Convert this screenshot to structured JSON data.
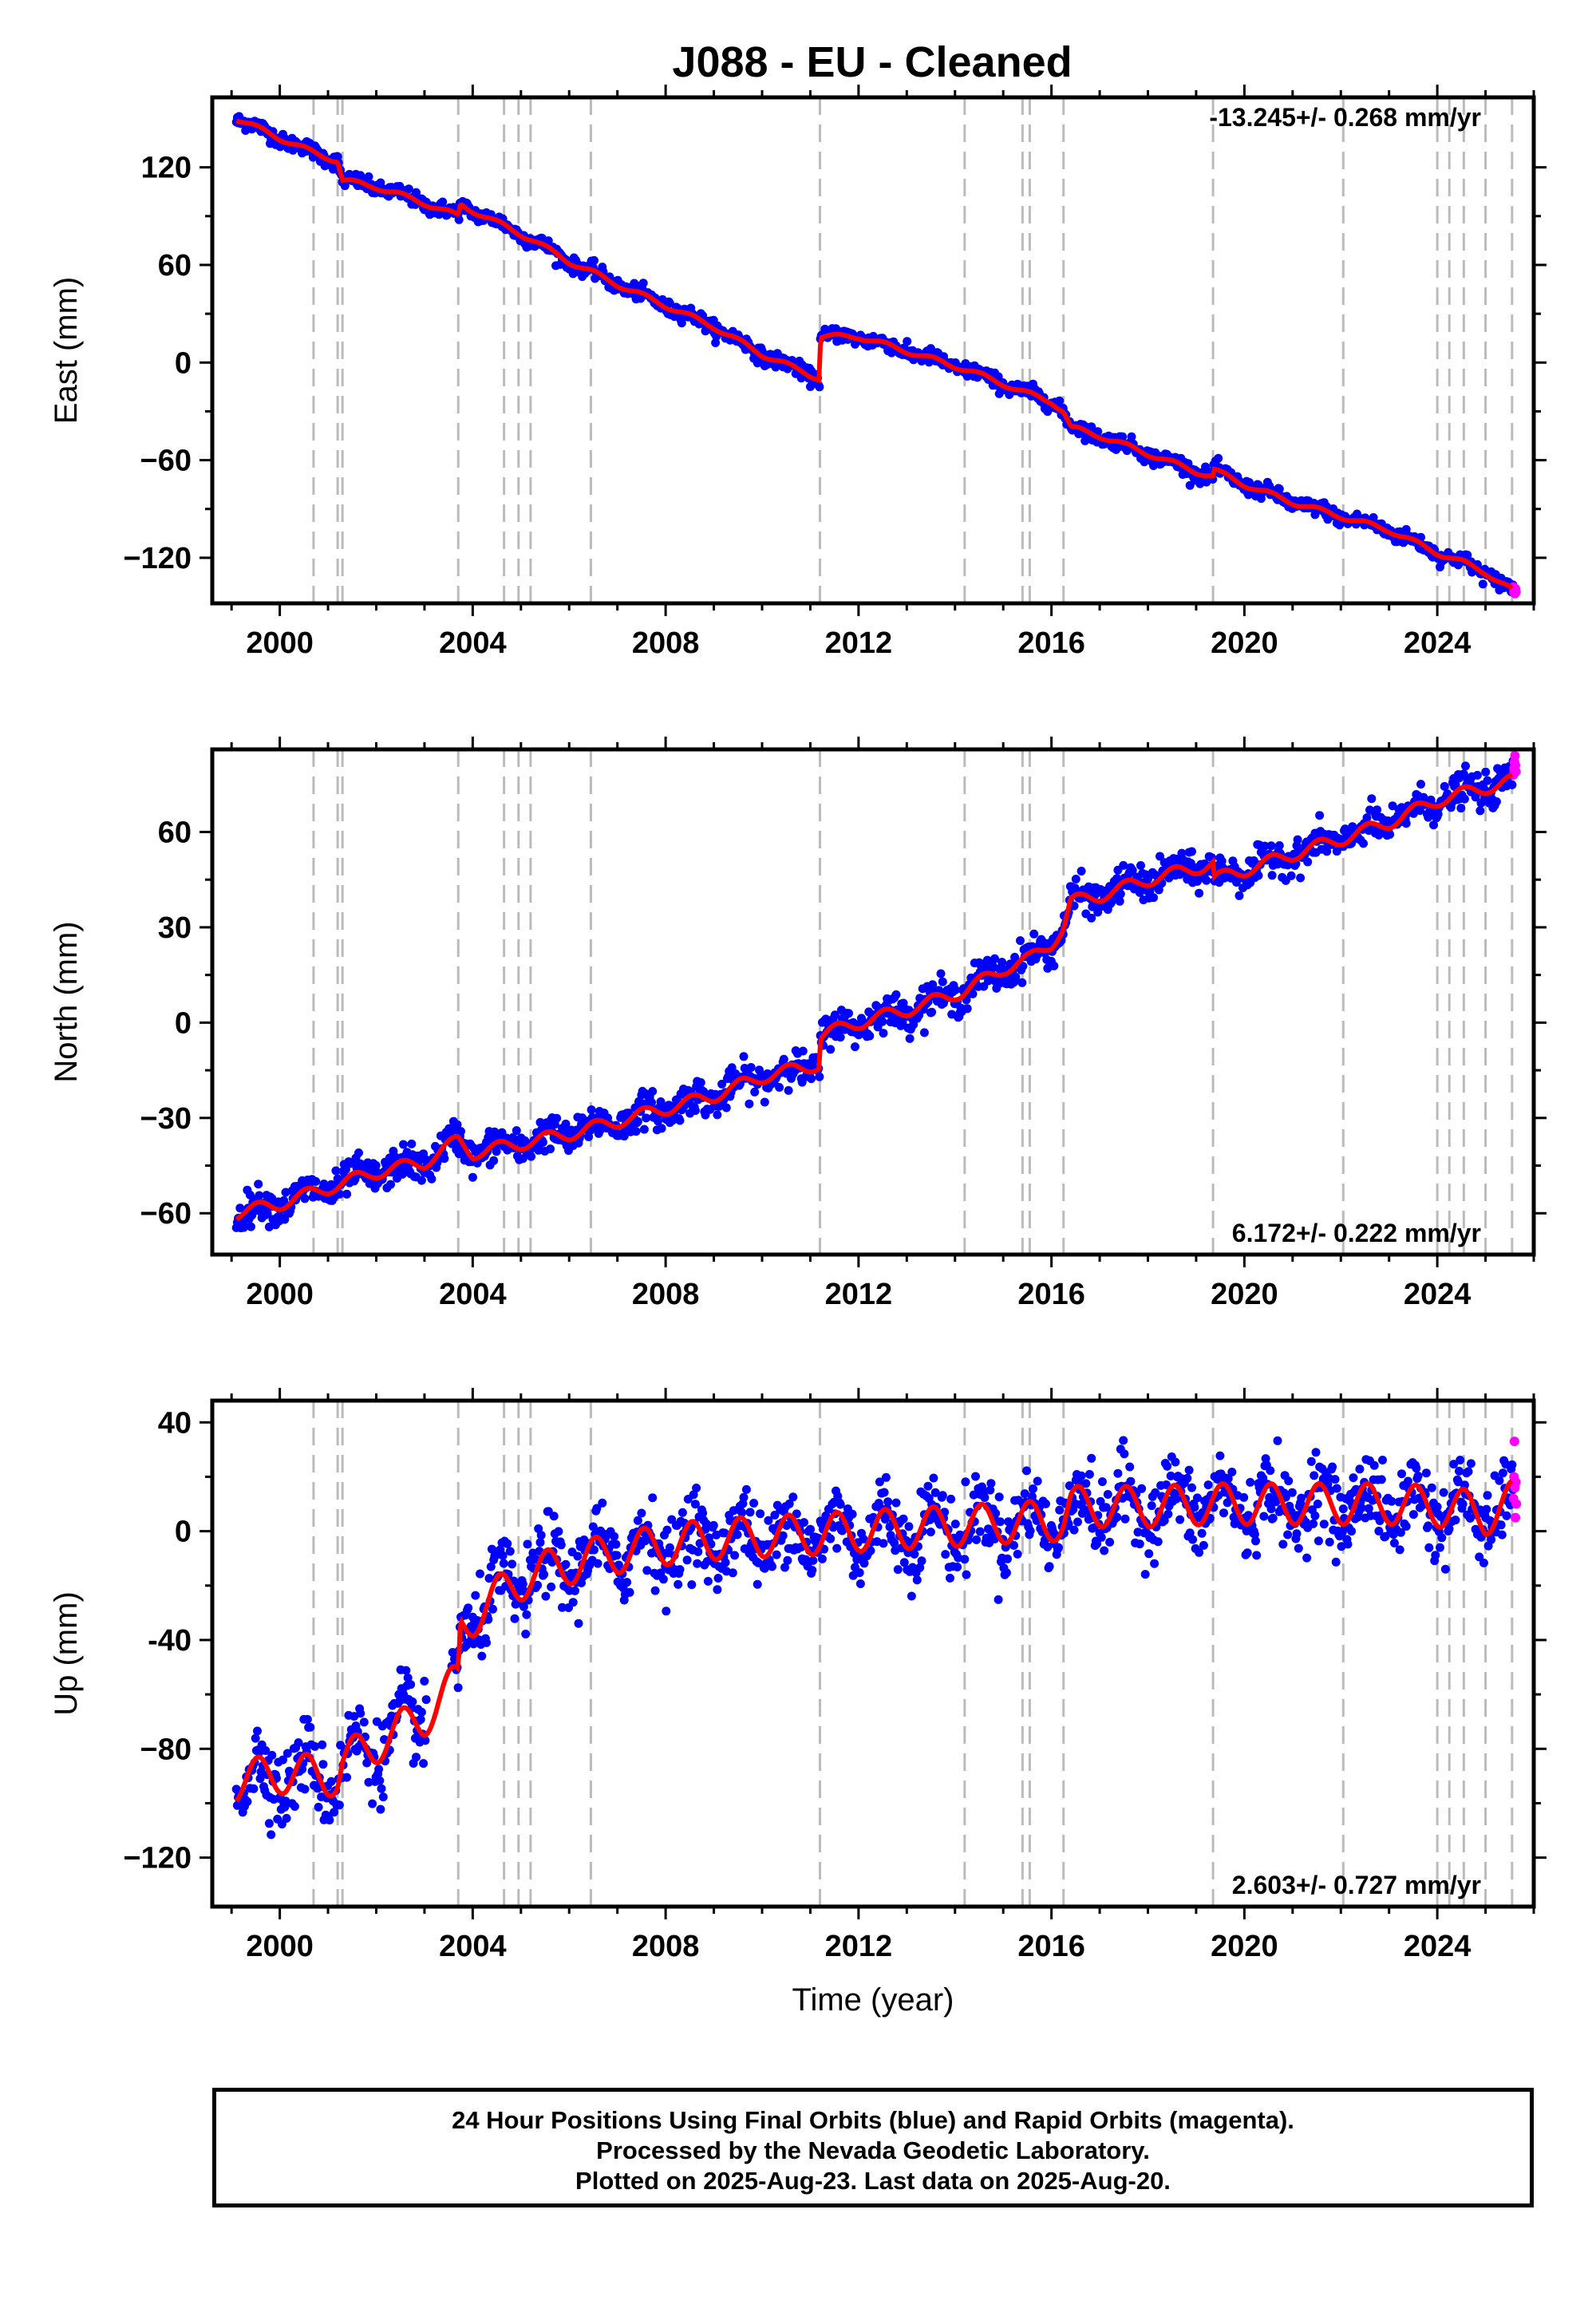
{
  "title": "J088  - EU - Cleaned",
  "footer": {
    "line1": "24 Hour Positions Using Final Orbits (blue) and Rapid Orbits (magenta).",
    "line2": "Processed by the Nevada Geodetic Laboratory.",
    "line3": "Plotted on 2025-Aug-23. Last data on 2025-Aug-20."
  },
  "colors": {
    "final": "#0000ff",
    "rapid": "#ff00ff",
    "model": "#ff0000",
    "event_line": "#bbbbbb"
  },
  "chart_data": [
    {
      "type": "scatter",
      "name": "east",
      "ylabel": "East (mm)",
      "xlabel": "",
      "xlim": [
        1998.6,
        2026.0
      ],
      "ylim": [
        -148,
        163
      ],
      "xticks": [
        2000,
        2004,
        2008,
        2012,
        2016,
        2020,
        2024
      ],
      "xtick_labels": [
        "2000",
        "2004",
        "2008",
        "2012",
        "2016",
        "2020",
        "2024"
      ],
      "yticks": [
        120,
        60,
        0,
        -60,
        -120
      ],
      "ytick_labels": [
        "120",
        "60",
        "0",
        "−60",
        "−120"
      ],
      "rate_label": "-13.245+/- 0.268 mm/yr",
      "rate_position": "top-right",
      "event_lines": [
        2000.7,
        2001.2,
        2001.3,
        2003.7,
        2004.65,
        2004.95,
        2005.2,
        2006.45,
        2011.2,
        2014.2,
        2015.4,
        2015.55,
        2016.25,
        2019.35,
        2022.05,
        2024.0,
        2024.25,
        2024.55,
        2025.0,
        2025.55
      ],
      "trend": [
        [
          1999.1,
          150
        ],
        [
          2000.0,
          138
        ],
        [
          2000.7,
          129
        ],
        [
          2001.2,
          124
        ],
        [
          2001.3,
          112
        ],
        [
          2002.0,
          108
        ],
        [
          2003.0,
          98
        ],
        [
          2003.7,
          90
        ],
        [
          2003.75,
          97
        ],
        [
          2004.65,
          84
        ],
        [
          2005.2,
          76
        ],
        [
          2006.0,
          62
        ],
        [
          2006.45,
          56
        ],
        [
          2007.0,
          48
        ],
        [
          2008.0,
          35
        ],
        [
          2009.0,
          22
        ],
        [
          2010.0,
          5
        ],
        [
          2011.2,
          -10
        ],
        [
          2011.21,
          16
        ],
        [
          2012.0,
          16
        ],
        [
          2013.0,
          7
        ],
        [
          2014.2,
          -4
        ],
        [
          2015.0,
          -13
        ],
        [
          2015.4,
          -18
        ],
        [
          2016.0,
          -24
        ],
        [
          2016.25,
          -30
        ],
        [
          2016.4,
          -40
        ],
        [
          2017.0,
          -45
        ],
        [
          2018.0,
          -56
        ],
        [
          2019.0,
          -67
        ],
        [
          2019.35,
          -70
        ],
        [
          2019.36,
          -66
        ],
        [
          2020.0,
          -75
        ],
        [
          2021.0,
          -86
        ],
        [
          2022.05,
          -95
        ],
        [
          2023.0,
          -103
        ],
        [
          2024.0,
          -117
        ],
        [
          2024.55,
          -123
        ],
        [
          2025.0,
          -129
        ],
        [
          2025.55,
          -140
        ]
      ],
      "seasonal_amp": 1.5,
      "scatter_sd": 2.3,
      "rapid_points": [
        [
          2025.58,
          -138
        ],
        [
          2025.59,
          -141
        ],
        [
          2025.6,
          -140
        ],
        [
          2025.61,
          -142
        ],
        [
          2025.62,
          -139
        ],
        [
          2025.63,
          -141
        ]
      ]
    },
    {
      "type": "scatter",
      "name": "north",
      "ylabel": "North (mm)",
      "xlabel": "",
      "xlim": [
        1998.6,
        2026.0
      ],
      "ylim": [
        -73,
        86
      ],
      "xticks": [
        2000,
        2004,
        2008,
        2012,
        2016,
        2020,
        2024
      ],
      "xtick_labels": [
        "2000",
        "2004",
        "2008",
        "2012",
        "2016",
        "2020",
        "2024"
      ],
      "yticks": [
        60,
        30,
        0,
        -30,
        -60
      ],
      "ytick_labels": [
        "60",
        "30",
        "0",
        "−30",
        "−60"
      ],
      "rate_label": "6.172+/- 0.222 mm/yr",
      "rate_position": "bottom-right",
      "event_lines": [
        2000.7,
        2001.2,
        2001.3,
        2003.7,
        2004.65,
        2004.95,
        2005.2,
        2006.45,
        2011.2,
        2014.2,
        2015.4,
        2015.55,
        2016.25,
        2019.35,
        2022.05,
        2024.0,
        2024.25,
        2024.55,
        2025.0,
        2025.55
      ],
      "trend": [
        [
          1999.1,
          -60
        ],
        [
          2000.0,
          -57
        ],
        [
          2001.2,
          -51
        ],
        [
          2002.0,
          -47
        ],
        [
          2003.0,
          -44
        ],
        [
          2003.7,
          -37
        ],
        [
          2004.0,
          -41
        ],
        [
          2005.0,
          -38
        ],
        [
          2006.0,
          -35
        ],
        [
          2007.0,
          -31
        ],
        [
          2008.0,
          -27
        ],
        [
          2009.0,
          -23
        ],
        [
          2010.0,
          -17
        ],
        [
          2011.2,
          -13
        ],
        [
          2011.21,
          -4
        ],
        [
          2012.0,
          0
        ],
        [
          2013.0,
          4
        ],
        [
          2014.2,
          10
        ],
        [
          2015.0,
          17
        ],
        [
          2015.55,
          20
        ],
        [
          2016.0,
          25
        ],
        [
          2016.25,
          30
        ],
        [
          2016.4,
          38
        ],
        [
          2017.0,
          40
        ],
        [
          2018.0,
          45
        ],
        [
          2019.35,
          50
        ],
        [
          2019.36,
          45
        ],
        [
          2020.0,
          48
        ],
        [
          2021.0,
          53
        ],
        [
          2022.05,
          58
        ],
        [
          2023.0,
          63
        ],
        [
          2024.0,
          70
        ],
        [
          2025.0,
          74
        ],
        [
          2025.55,
          76
        ]
      ],
      "seasonal_amp": 2.0,
      "scatter_sd": 2.6,
      "rapid_points": [
        [
          2025.58,
          78
        ],
        [
          2025.59,
          80
        ],
        [
          2025.6,
          82
        ],
        [
          2025.61,
          84
        ],
        [
          2025.62,
          81
        ],
        [
          2025.63,
          79
        ]
      ]
    },
    {
      "type": "scatter",
      "name": "up",
      "ylabel": "Up (mm)",
      "xlabel": "Time (year)",
      "xlim": [
        1998.6,
        2026.0
      ],
      "ylim": [
        -138,
        48
      ],
      "xticks": [
        2000,
        2004,
        2008,
        2012,
        2016,
        2020,
        2024
      ],
      "xtick_labels": [
        "2000",
        "2004",
        "2008",
        "2012",
        "2016",
        "2020",
        "2024"
      ],
      "yticks": [
        40,
        0,
        -40,
        -80,
        -120
      ],
      "ytick_labels": [
        "40",
        "0",
        "-40",
        "−80",
        "−120"
      ],
      "rate_label": "2.603+/- 0.727 mm/yr",
      "rate_position": "bottom-right",
      "event_lines": [
        2000.7,
        2001.2,
        2001.3,
        2003.7,
        2004.65,
        2004.95,
        2005.2,
        2006.45,
        2011.2,
        2014.2,
        2015.4,
        2015.55,
        2016.25,
        2019.35,
        2022.05,
        2024.0,
        2024.25,
        2024.55,
        2025.0,
        2025.55
      ],
      "trend": [
        [
          1999.1,
          -92
        ],
        [
          2000.0,
          -89
        ],
        [
          2001.2,
          -90
        ],
        [
          2001.3,
          -85
        ],
        [
          2002.0,
          -78
        ],
        [
          2003.0,
          -68
        ],
        [
          2003.7,
          -55
        ],
        [
          2003.75,
          -35
        ],
        [
          2004.65,
          -22
        ],
        [
          2005.2,
          -16
        ],
        [
          2006.45,
          -10
        ],
        [
          2007.0,
          -8
        ],
        [
          2008.0,
          -5
        ],
        [
          2009.0,
          -3
        ],
        [
          2010.0,
          -2
        ],
        [
          2011.2,
          -1
        ],
        [
          2012.0,
          0
        ],
        [
          2013.0,
          1
        ],
        [
          2014.2,
          2
        ],
        [
          2015.0,
          3
        ],
        [
          2016.25,
          4
        ],
        [
          2016.4,
          9
        ],
        [
          2017.0,
          9
        ],
        [
          2018.0,
          9
        ],
        [
          2019.35,
          10
        ],
        [
          2020.0,
          10
        ],
        [
          2021.0,
          10
        ],
        [
          2022.05,
          10
        ],
        [
          2023.0,
          10
        ],
        [
          2024.0,
          9
        ],
        [
          2024.55,
          8
        ],
        [
          2025.0,
          6
        ],
        [
          2025.55,
          11
        ]
      ],
      "gaps": [
        [
          2003.05,
          2003.55
        ]
      ],
      "seasonal_amp": 7.5,
      "scatter_sd": 7.0,
      "rapid_points": [
        [
          2025.58,
          12
        ],
        [
          2025.59,
          20
        ],
        [
          2025.6,
          33
        ],
        [
          2025.61,
          16
        ],
        [
          2025.62,
          5
        ],
        [
          2025.63,
          18
        ],
        [
          2025.64,
          10
        ]
      ]
    }
  ]
}
